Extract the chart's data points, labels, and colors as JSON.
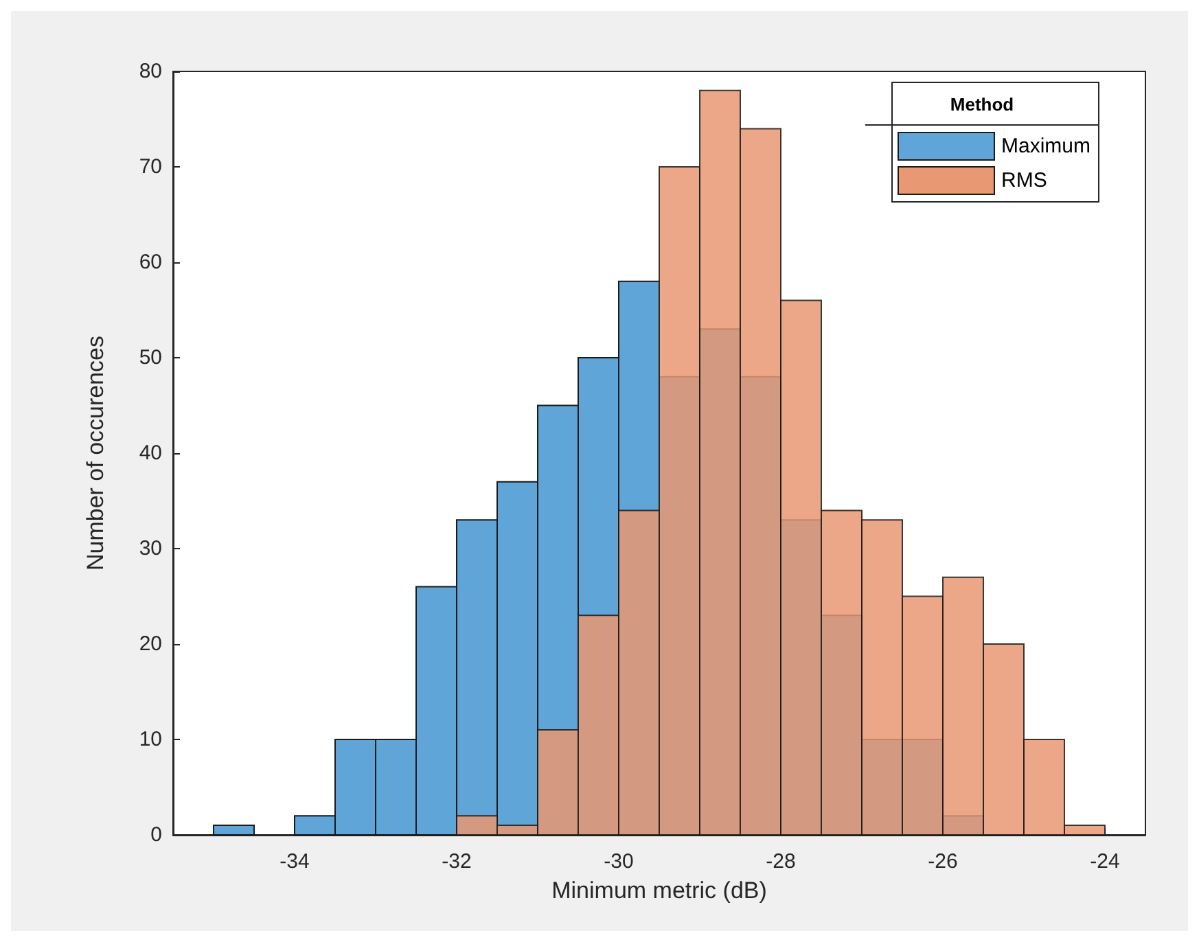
{
  "chart_data": {
    "type": "histogram",
    "xlabel": "Minimum metric (dB)",
    "ylabel": "Number of occurences",
    "legend_title": "Method",
    "legend": "top right",
    "grid": false,
    "bins": [
      -35,
      -34.5,
      -34,
      -33.5,
      -33,
      -32.5,
      -32,
      -31.5,
      -31,
      -30.5,
      -30,
      -29.5,
      -29,
      -28.5,
      -28,
      -27.5,
      -27,
      -26.5,
      -26,
      -25.5,
      -25,
      -24.5,
      -24
    ],
    "series": [
      {
        "name": "Maximum",
        "color": "#5fa5d7",
        "values": [
          1,
          0,
          2,
          10,
          10,
          26,
          33,
          37,
          45,
          50,
          58,
          48,
          53,
          48,
          33,
          23,
          10,
          10,
          2,
          0,
          0,
          0
        ]
      },
      {
        "name": "RMS",
        "color": "#e89872",
        "values": [
          0,
          0,
          0,
          0,
          0,
          0,
          2,
          1,
          11,
          23,
          34,
          70,
          78,
          74,
          56,
          34,
          33,
          25,
          27,
          20,
          10,
          1
        ]
      }
    ],
    "xlim": [
      -35.5,
      -23.5
    ],
    "xticks": [
      -34,
      -32,
      -30,
      -28,
      -26,
      -24
    ],
    "ylim": [
      0,
      80
    ],
    "yticks": [
      0,
      10,
      20,
      30,
      40,
      50,
      60,
      70,
      80
    ]
  }
}
